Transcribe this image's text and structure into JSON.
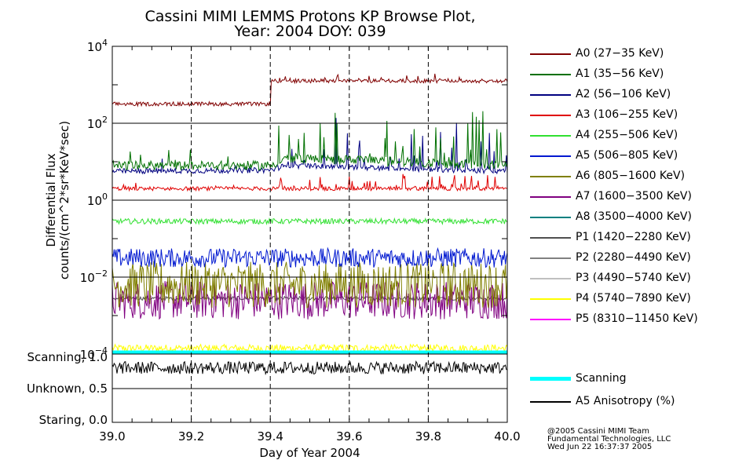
{
  "title_line1": "Cassini MIMI LEMMS Protons KP Browse Plot,",
  "title_line2": "Year: 2004 DOY: 039",
  "credits": [
    "@2005 Cassini MIMI Team",
    "Fundamental Technologies, LLC",
    "Wed Jun 22 16:37:37 2005"
  ],
  "legend": [
    {
      "label": "A0 (27−35 KeV)",
      "color": "#800000"
    },
    {
      "label": "A1 (35−56 KeV)",
      "color": "#007000"
    },
    {
      "label": "A2 (56−106 KeV)",
      "color": "#000080"
    },
    {
      "label": "A3 (106−255 KeV)",
      "color": "#e00000"
    },
    {
      "label": "A4 (255−506 KeV)",
      "color": "#30e030"
    },
    {
      "label": "A5 (506−805 KeV)",
      "color": "#0018d0"
    },
    {
      "label": "A6 (805−1600 KeV)",
      "color": "#808000"
    },
    {
      "label": "A7 (1600−3500 KeV)",
      "color": "#800080"
    },
    {
      "label": "A8 (3500−4000 KeV)",
      "color": "#008080"
    },
    {
      "label": "P1 (1420−2280 KeV)",
      "color": "#505050"
    },
    {
      "label": "P2 (2280−4490 KeV)",
      "color": "#808080"
    },
    {
      "label": "P3 (4490−5740 KeV)",
      "color": "#c0c0c0"
    },
    {
      "label": "P4 (5740−7890 KeV)",
      "color": "#ffff00"
    },
    {
      "label": "P5 (8310−11450 KeV)",
      "color": "#ff00ff"
    }
  ],
  "legend_lower": [
    {
      "label": "Scanning",
      "color": "#00ffff"
    },
    {
      "label": "A5 Anisotropy (%)",
      "color": "#000000"
    }
  ],
  "chart_data": [
    {
      "type": "line",
      "panel": "flux",
      "ylabel_line1": "Differential Flux",
      "ylabel_line2": "counts/(cm^2*sr*KeV*sec)",
      "yscale": "log",
      "ylim_log10": [
        -4,
        4
      ],
      "xlim": [
        39.0,
        40.0
      ],
      "ytick_base": "10",
      "ytick_exponents": [
        "4",
        "2",
        "0",
        "−2",
        "−4"
      ],
      "series": [
        {
          "name": "A0 (27-35 KeV)",
          "color": "#800000",
          "x": [
            39.0,
            39.4,
            39.401,
            40.0
          ],
          "log10_values": [
            2.5,
            2.5,
            3.1,
            3.1
          ],
          "noise": 0.05,
          "spikes": 0.15
        },
        {
          "name": "A1 (35-56 KeV)",
          "color": "#007000",
          "x": [
            39.0,
            39.4,
            39.44,
            40.0
          ],
          "log10_values": [
            0.9,
            0.9,
            1.1,
            0.9
          ],
          "noise": 0.12,
          "spikes": 1.4
        },
        {
          "name": "A2 (56-106 KeV)",
          "color": "#000080",
          "x": [
            39.0,
            39.4,
            39.44,
            40.0
          ],
          "log10_values": [
            0.75,
            0.78,
            0.9,
            0.75
          ],
          "noise": 0.07,
          "spikes": 1.3
        },
        {
          "name": "A3 (106-255 KeV)",
          "color": "#e00000",
          "x": [
            39.0,
            40.0
          ],
          "log10_values": [
            0.3,
            0.3
          ],
          "noise": 0.05,
          "spikes": 0.4
        },
        {
          "name": "A4 (255-506 KeV)",
          "color": "#30e030",
          "x": [
            39.0,
            40.0
          ],
          "log10_values": [
            -0.55,
            -0.55
          ],
          "noise": 0.07,
          "spikes": 0.0
        },
        {
          "name": "A5 (506-805 KeV)",
          "color": "#0018d0",
          "x": [
            39.0,
            40.0
          ],
          "log10_values": [
            -1.5,
            -1.5
          ],
          "noise": 0.25,
          "spikes": 0.0
        },
        {
          "name": "A6 (805-1600 KeV)",
          "color": "#808000",
          "x": [
            39.0,
            40.0
          ],
          "log10_values": [
            -2.2,
            -2.2
          ],
          "noise": 0.6,
          "spikes": 0.0
        },
        {
          "name": "A7 (1600-3500 KeV)",
          "color": "#800080",
          "x": [
            39.0,
            40.0
          ],
          "log10_values": [
            -2.6,
            -2.6
          ],
          "noise": 0.5,
          "spikes": 0.0
        },
        {
          "name": "P1 (1420-2280 KeV)",
          "color": "#505050",
          "x": [
            39.0,
            40.0
          ],
          "log10_values": [
            -2.55,
            -2.55
          ],
          "noise": 0.05,
          "spikes": 0.0
        },
        {
          "name": "P4 (5740-7890 KeV)",
          "color": "#ffff00",
          "x": [
            39.0,
            40.0
          ],
          "log10_values": [
            -3.85,
            -3.85
          ],
          "noise": 0.1,
          "spikes": 0.0
        }
      ]
    },
    {
      "type": "line",
      "panel": "scanning",
      "ytick_labels": [
        "Scanning, 1.0",
        "Unknown, 0.5",
        "Staring, 0.0"
      ],
      "ylim": [
        0.0,
        1.0
      ],
      "xlim": [
        39.0,
        40.0
      ],
      "xlabel": "Day of Year 2004",
      "xtick_labels": [
        "39.0",
        "39.2",
        "39.4",
        "39.6",
        "39.8",
        "40.0"
      ],
      "series": [
        {
          "name": "Scanning",
          "color": "#00ffff",
          "x": [
            39.0,
            40.0
          ],
          "values": [
            1.0,
            1.0
          ]
        },
        {
          "name": "A5 Anisotropy (%)",
          "color": "#000000",
          "x": [
            39.0,
            40.0
          ],
          "values": [
            0.83,
            0.83
          ],
          "noise": 0.1
        }
      ]
    }
  ]
}
